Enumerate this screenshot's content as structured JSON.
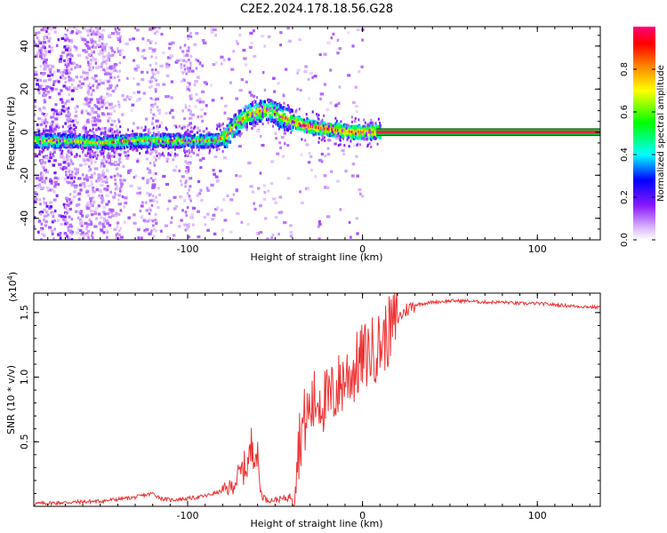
{
  "title": "C2E2.2024.178.18.56.G28",
  "chart_data": [
    {
      "type": "heatmap",
      "title": "C2E2.2024.178.18.56.G28",
      "xlabel": "Height of straight line (km)",
      "ylabel": "Frequency (Hz)",
      "xlim": [
        -188,
        136
      ],
      "ylim": [
        -50,
        49
      ],
      "xticks": [
        -100,
        0,
        100
      ],
      "yticks": [
        -40,
        -20,
        0,
        20,
        40
      ],
      "xtick_labels": [
        "-100",
        "0",
        "100"
      ],
      "ytick_labels": [
        "-40",
        "-20",
        "0",
        "20",
        "40"
      ],
      "ridge": {
        "description": "frequency of spectral peak vs height",
        "x": [
          -188,
          -170,
          -150,
          -130,
          -110,
          -95,
          -85,
          -78,
          -72,
          -65,
          -58,
          -52,
          -46,
          -40,
          -33,
          -25,
          -15,
          -5,
          0,
          5,
          10,
          136
        ],
        "y": [
          -4,
          -4,
          -5,
          -4,
          -4,
          -4,
          -4,
          -2,
          4,
          8,
          10,
          10,
          7,
          5,
          3,
          2,
          1,
          0,
          0,
          0,
          0,
          0
        ]
      },
      "colorbar": {
        "label": "Normalized spectral amplitude",
        "range": [
          0.0,
          1.0
        ],
        "ticks": [
          0.0,
          0.2,
          0.4,
          0.6,
          0.8
        ],
        "tick_labels": [
          "0.0",
          "0.2",
          "0.4",
          "0.6",
          "0.8"
        ],
        "colors": [
          "#ffffff",
          "#d9b3ff",
          "#7a00ff",
          "#0000ff",
          "#00ffff",
          "#00ff00",
          "#ffff00",
          "#ff7f00",
          "#ff0000",
          "#ff0077"
        ]
      }
    },
    {
      "type": "line",
      "xlabel": "Height of straight line (km)",
      "ylabel": "SNR (10 * v/v)",
      "y_scale_label": "(x10",
      "y_scale_exp": "4",
      "y_scale_close": ")",
      "xlim": [
        -188,
        136
      ],
      "ylim": [
        0.0,
        1.65
      ],
      "xticks": [
        -100,
        0,
        100
      ],
      "yticks": [
        0.5,
        1.0,
        1.5
      ],
      "xtick_labels": [
        "-100",
        "0",
        "100"
      ],
      "ytick_labels": [
        "0.5",
        "1.0",
        "1.5"
      ],
      "color": "#ee3333",
      "series": [
        {
          "name": "SNR",
          "x": [
            -188,
            -170,
            -150,
            -130,
            -120,
            -115,
            -110,
            -100,
            -90,
            -80,
            -75,
            -70,
            -65,
            -62,
            -60,
            -58,
            -55,
            -50,
            -45,
            -40,
            -38,
            -35,
            -30,
            -25,
            -20,
            -15,
            -10,
            -5,
            0,
            5,
            10,
            15,
            20,
            25,
            30,
            35,
            40,
            50,
            60,
            70,
            80,
            90,
            100,
            110,
            120,
            136
          ],
          "y": [
            0.02,
            0.03,
            0.04,
            0.07,
            0.1,
            0.06,
            0.05,
            0.06,
            0.08,
            0.12,
            0.15,
            0.25,
            0.35,
            0.55,
            0.35,
            0.1,
            0.05,
            0.05,
            0.06,
            0.08,
            0.35,
            0.6,
            0.75,
            0.85,
            0.8,
            0.9,
            1.0,
            1.05,
            1.15,
            1.2,
            1.25,
            1.35,
            1.45,
            1.52,
            1.56,
            1.57,
            1.58,
            1.59,
            1.59,
            1.58,
            1.58,
            1.57,
            1.57,
            1.56,
            1.55,
            1.54
          ]
        }
      ]
    }
  ]
}
